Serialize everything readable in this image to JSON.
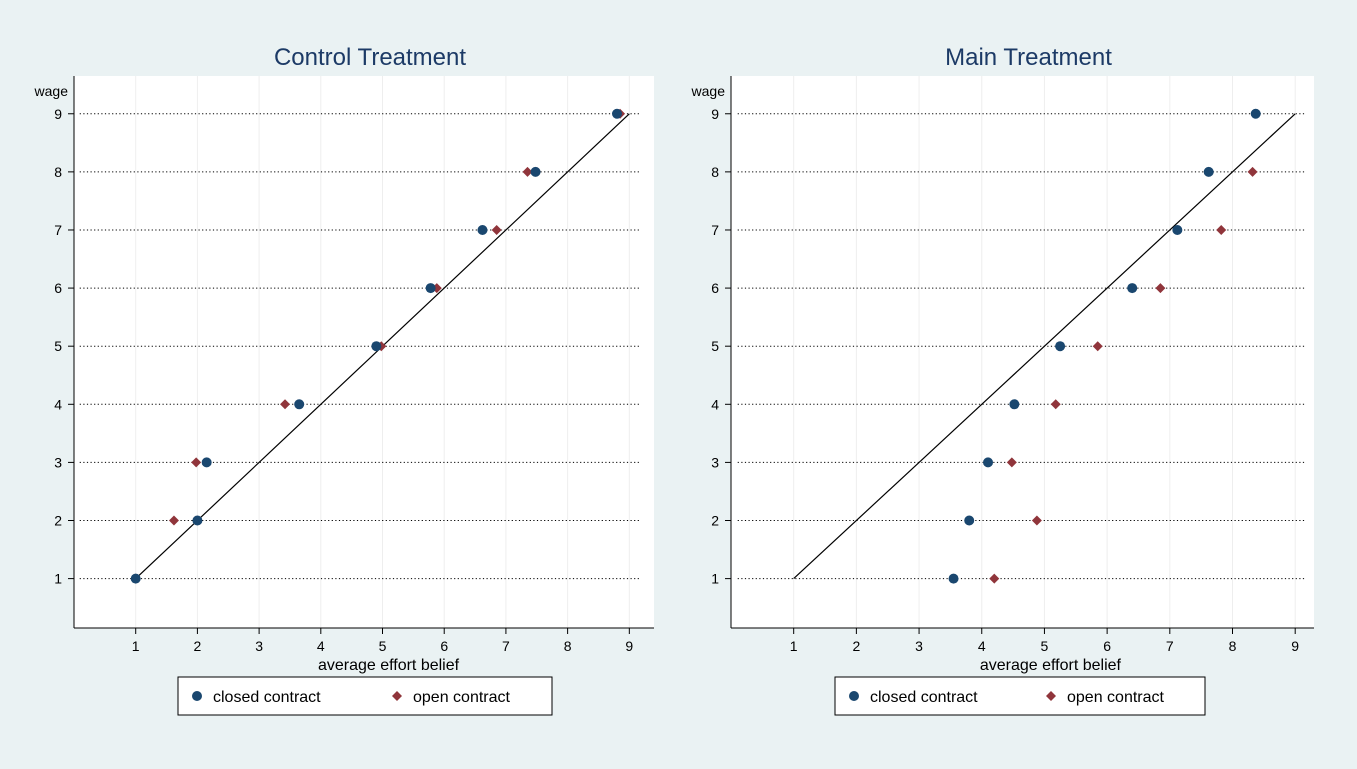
{
  "colors": {
    "outer_background": "#eaf2f3",
    "plot_background": "#ffffff",
    "closed_contract": "#1a476f",
    "open_contract": "#90353b",
    "diagonal_line": "#000000",
    "title": "#1c3a66"
  },
  "chart_data": [
    {
      "type": "scatter",
      "title": "Control Treatment",
      "xlabel": "average effort belief",
      "ylabel": "wage",
      "xlim": [
        0,
        9.4
      ],
      "ylim": [
        0.15,
        9.65
      ],
      "xticks": [
        1,
        2,
        3,
        4,
        5,
        6,
        7,
        8,
        9
      ],
      "yticks": [
        1,
        2,
        3,
        4,
        5,
        6,
        7,
        8,
        9
      ],
      "horizontal_reference_lines": [
        1,
        2,
        3,
        4,
        5,
        6,
        7,
        8,
        9
      ],
      "diagonal_line": {
        "from": [
          1,
          1
        ],
        "to": [
          9,
          9
        ]
      },
      "grid": "horizontal dotted at y ticks, light vertical at x ticks",
      "legend_position": "bottom",
      "series": [
        {
          "name": "closed contract",
          "marker": "circle",
          "points": [
            [
              1.0,
              1
            ],
            [
              2.0,
              2
            ],
            [
              2.15,
              3
            ],
            [
              3.65,
              4
            ],
            [
              4.9,
              5
            ],
            [
              5.78,
              6
            ],
            [
              6.62,
              7
            ],
            [
              7.48,
              8
            ],
            [
              8.8,
              9
            ]
          ]
        },
        {
          "name": "open contract",
          "marker": "diamond",
          "points": [
            [
              1.0,
              1
            ],
            [
              1.62,
              2
            ],
            [
              1.98,
              3
            ],
            [
              3.42,
              4
            ],
            [
              4.98,
              5
            ],
            [
              5.88,
              6
            ],
            [
              6.85,
              7
            ],
            [
              7.35,
              8
            ],
            [
              8.85,
              9
            ]
          ]
        }
      ]
    },
    {
      "type": "scatter",
      "title": "Main Treatment",
      "xlabel": "average effort belief",
      "ylabel": "wage",
      "xlim": [
        0,
        9.3
      ],
      "ylim": [
        0.15,
        9.65
      ],
      "xticks": [
        1,
        2,
        3,
        4,
        5,
        6,
        7,
        8,
        9
      ],
      "yticks": [
        1,
        2,
        3,
        4,
        5,
        6,
        7,
        8,
        9
      ],
      "horizontal_reference_lines": [
        1,
        2,
        3,
        4,
        5,
        6,
        7,
        8,
        9
      ],
      "diagonal_line": {
        "from": [
          1,
          1
        ],
        "to": [
          9,
          9
        ]
      },
      "grid": "horizontal dotted at y ticks, light vertical at x ticks",
      "legend_position": "bottom",
      "series": [
        {
          "name": "closed contract",
          "marker": "circle",
          "points": [
            [
              3.55,
              1
            ],
            [
              3.8,
              2
            ],
            [
              4.1,
              3
            ],
            [
              4.52,
              4
            ],
            [
              5.25,
              5
            ],
            [
              6.4,
              6
            ],
            [
              7.12,
              7
            ],
            [
              7.62,
              8
            ],
            [
              8.37,
              9
            ]
          ]
        },
        {
          "name": "open contract",
          "marker": "diamond",
          "points": [
            [
              4.2,
              1
            ],
            [
              4.88,
              2
            ],
            [
              4.48,
              3
            ],
            [
              5.18,
              4
            ],
            [
              5.85,
              5
            ],
            [
              6.85,
              6
            ],
            [
              7.82,
              7
            ],
            [
              8.32,
              8
            ]
          ]
        }
      ]
    }
  ]
}
